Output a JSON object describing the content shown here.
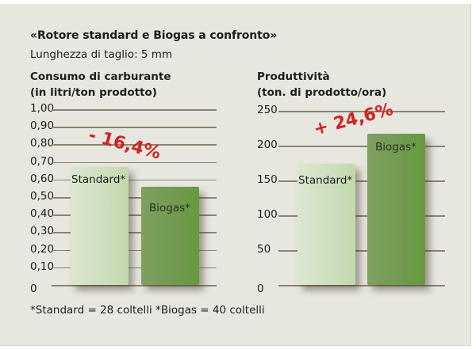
{
  "header": {
    "title": "«Rotore standard e Biogas a confronto»",
    "subtitle": "Lunghezza di taglio: 5 mm"
  },
  "charts": [
    {
      "title_line1": "Consumo di carburante",
      "title_line2": "(in litri/ton prodotto)",
      "ticks": [
        "1,00",
        "0,90",
        "0,80",
        "0,70",
        "0,60",
        "0,50",
        "0,40",
        "0,30",
        "0,20",
        "0,10",
        "0"
      ],
      "bars": [
        {
          "label": "Standard*"
        },
        {
          "label": "Biogas*"
        }
      ],
      "delta": "- 16,4%"
    },
    {
      "title_line1": "Produttività",
      "title_line2": "(ton. di prodotto/ora)",
      "ticks": [
        "250",
        "200",
        "150",
        "100",
        "50",
        "0"
      ],
      "bars": [
        {
          "label": "Standard*"
        },
        {
          "label": "Biogas*"
        }
      ],
      "delta": "+ 24,6%"
    }
  ],
  "footnote": "*Standard = 28 coltelli   *Biogas = 40 coltelli",
  "colors": {
    "background": "#e8e7df",
    "standard_bar": "#cfe0c1",
    "biogas_bar": "#729b53",
    "delta_text": "#d42222",
    "gridline": "#8a8470"
  },
  "chart_data": [
    {
      "type": "bar",
      "title": "Consumo di carburante (in litri/ton prodotto)",
      "categories": [
        "Standard*",
        "Biogas*"
      ],
      "values": [
        0.67,
        0.56
      ],
      "xlabel": "",
      "ylabel": "litri/ton prodotto",
      "ylim": [
        0,
        1.0
      ],
      "yticks": [
        0,
        0.1,
        0.2,
        0.3,
        0.4,
        0.5,
        0.6,
        0.7,
        0.8,
        0.9,
        1.0
      ],
      "grid": true,
      "annotations": [
        "- 16,4%"
      ]
    },
    {
      "type": "bar",
      "title": "Produttività (ton. di prodotto/ora)",
      "categories": [
        "Standard*",
        "Biogas*"
      ],
      "values": [
        174,
        217
      ],
      "xlabel": "",
      "ylabel": "ton. di prodotto/ora",
      "ylim": [
        0,
        250
      ],
      "yticks": [
        0,
        50,
        100,
        150,
        200,
        250
      ],
      "grid": true,
      "annotations": [
        "+ 24,6%"
      ]
    }
  ]
}
